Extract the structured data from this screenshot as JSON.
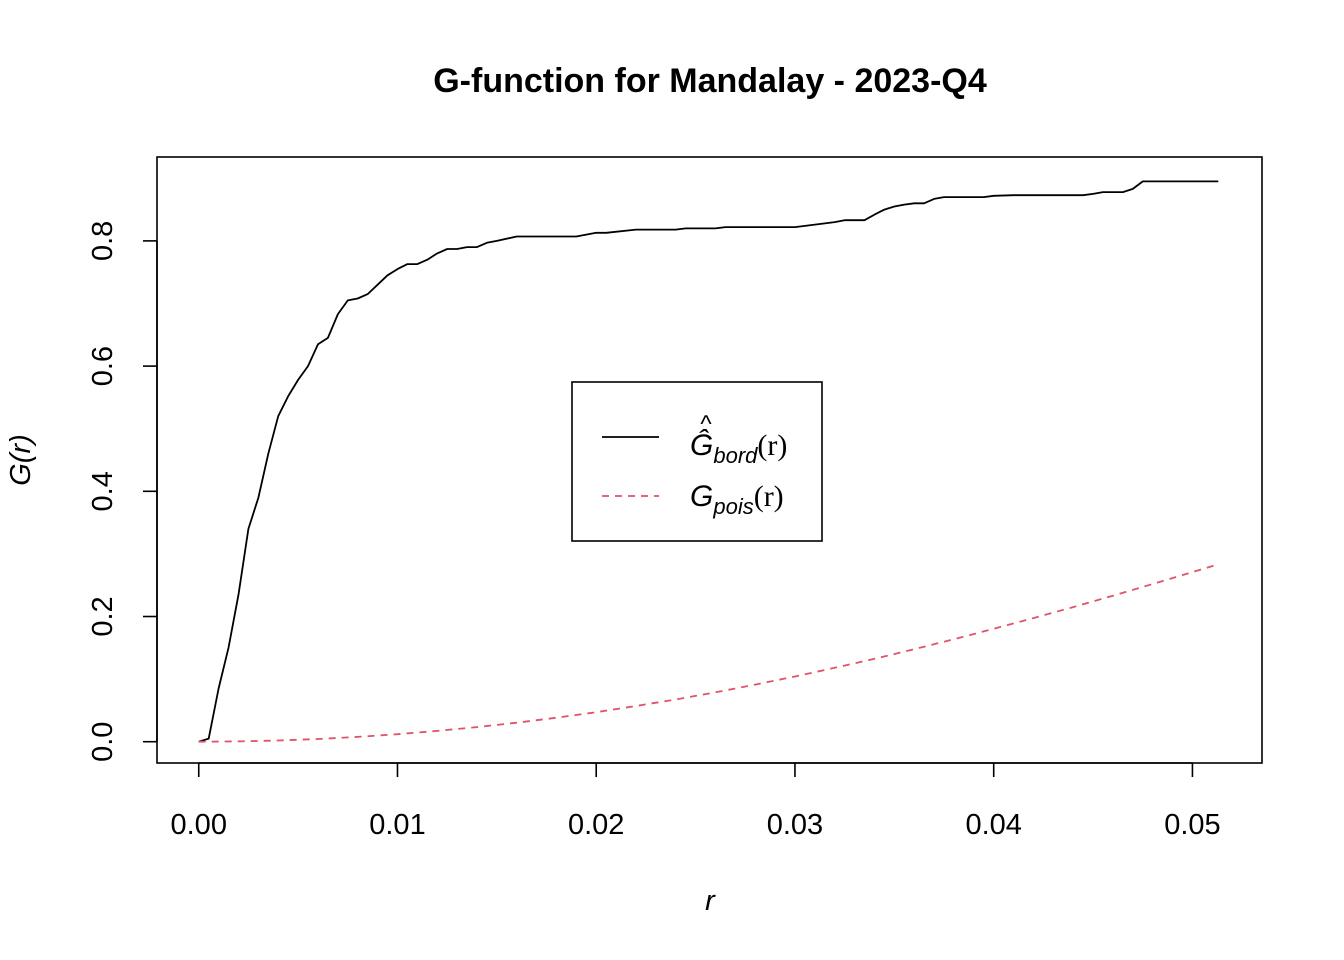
{
  "chart_data": {
    "type": "line",
    "title": "G-function for Mandalay - 2023-Q4",
    "xlabel": "r",
    "ylabel": "G(r)",
    "xlim": [
      -0.0021,
      0.0535
    ],
    "ylim": [
      -0.034,
      0.934
    ],
    "x_ticks": [
      0.0,
      0.01,
      0.02,
      0.03,
      0.04,
      0.05
    ],
    "x_tick_labels": [
      "0.00",
      "0.01",
      "0.02",
      "0.03",
      "0.04",
      "0.05"
    ],
    "y_ticks": [
      0.0,
      0.2,
      0.4,
      0.6,
      0.8
    ],
    "y_tick_labels": [
      "0.0",
      "0.2",
      "0.4",
      "0.6",
      "0.8"
    ],
    "grid": false,
    "legend_position": "center",
    "series": [
      {
        "name": "Ĝbord(r)",
        "legend_main": "Ĝ",
        "legend_sub": "bord",
        "legend_arg": "(r)",
        "color": "#000000",
        "dash": "solid",
        "x": [
          0,
          0.0005,
          0.001,
          0.0015,
          0.002,
          0.0025,
          0.003,
          0.0035,
          0.004,
          0.0045,
          0.005,
          0.0055,
          0.006,
          0.0065,
          0.007,
          0.0075,
          0.008,
          0.0085,
          0.009,
          0.0095,
          0.01,
          0.0105,
          0.011,
          0.0115,
          0.012,
          0.0125,
          0.013,
          0.0135,
          0.014,
          0.0145,
          0.015,
          0.016,
          0.017,
          0.018,
          0.019,
          0.02,
          0.0205,
          0.022,
          0.024,
          0.0245,
          0.026,
          0.0265,
          0.028,
          0.0285,
          0.03,
          0.0315,
          0.032,
          0.0325,
          0.0335,
          0.034,
          0.0345,
          0.035,
          0.0355,
          0.036,
          0.0365,
          0.037,
          0.0375,
          0.038,
          0.0385,
          0.0395,
          0.04,
          0.041,
          0.0415,
          0.0435,
          0.0445,
          0.045,
          0.0455,
          0.046,
          0.0465,
          0.047,
          0.0475,
          0.0485,
          0.049,
          0.0495,
          0.05,
          0.0505,
          0.0513
        ],
        "y": [
          0,
          0.005,
          0.085,
          0.15,
          0.235,
          0.34,
          0.39,
          0.46,
          0.52,
          0.552,
          0.578,
          0.6,
          0.635,
          0.645,
          0.683,
          0.705,
          0.708,
          0.715,
          0.73,
          0.745,
          0.755,
          0.763,
          0.763,
          0.77,
          0.78,
          0.787,
          0.787,
          0.79,
          0.79,
          0.797,
          0.8,
          0.807,
          0.807,
          0.807,
          0.807,
          0.813,
          0.813,
          0.818,
          0.818,
          0.82,
          0.82,
          0.822,
          0.822,
          0.822,
          0.822,
          0.828,
          0.83,
          0.833,
          0.833,
          0.842,
          0.85,
          0.855,
          0.858,
          0.86,
          0.86,
          0.867,
          0.87,
          0.87,
          0.87,
          0.87,
          0.872,
          0.873,
          0.873,
          0.873,
          0.873,
          0.875,
          0.878,
          0.878,
          0.878,
          0.883,
          0.895,
          0.895,
          0.895,
          0.895,
          0.895,
          0.895,
          0.895
        ]
      },
      {
        "name": "Gpois(r)",
        "legend_main": "G",
        "legend_sub": "pois",
        "legend_arg": "(r)",
        "color": "#DF536B",
        "dash": "dashed",
        "x": [
          0,
          0.002,
          0.004,
          0.006,
          0.008,
          0.01,
          0.012,
          0.014,
          0.016,
          0.018,
          0.02,
          0.022,
          0.024,
          0.026,
          0.028,
          0.03,
          0.032,
          0.034,
          0.036,
          0.038,
          0.04,
          0.042,
          0.044,
          0.046,
          0.048,
          0.05,
          0.0513
        ],
        "y": [
          0,
          0.0005,
          0.0019,
          0.0043,
          0.0077,
          0.012,
          0.0172,
          0.0233,
          0.0304,
          0.0384,
          0.0472,
          0.057,
          0.0675,
          0.0789,
          0.0912,
          0.1042,
          0.118,
          0.1325,
          0.1478,
          0.1637,
          0.1803,
          0.1974,
          0.2151,
          0.2333,
          0.252,
          0.271,
          0.2834
        ]
      }
    ]
  }
}
